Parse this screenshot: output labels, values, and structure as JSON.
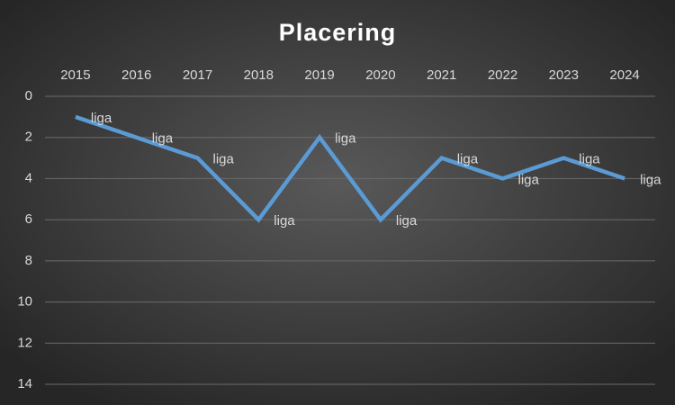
{
  "chart_data": {
    "type": "line",
    "title": "Placering",
    "categories": [
      "2015",
      "2016",
      "2017",
      "2018",
      "2019",
      "2020",
      "2021",
      "2022",
      "2023",
      "2024"
    ],
    "series": [
      {
        "name": "liga",
        "color": "#5b9bd5",
        "values": [
          1,
          2,
          3,
          6,
          2,
          6,
          3,
          4,
          3,
          4
        ]
      }
    ],
    "ylim": [
      0,
      14
    ],
    "yticks": [
      0,
      2,
      4,
      6,
      8,
      10,
      12,
      14
    ],
    "y_reversed": true,
    "grid": true
  }
}
